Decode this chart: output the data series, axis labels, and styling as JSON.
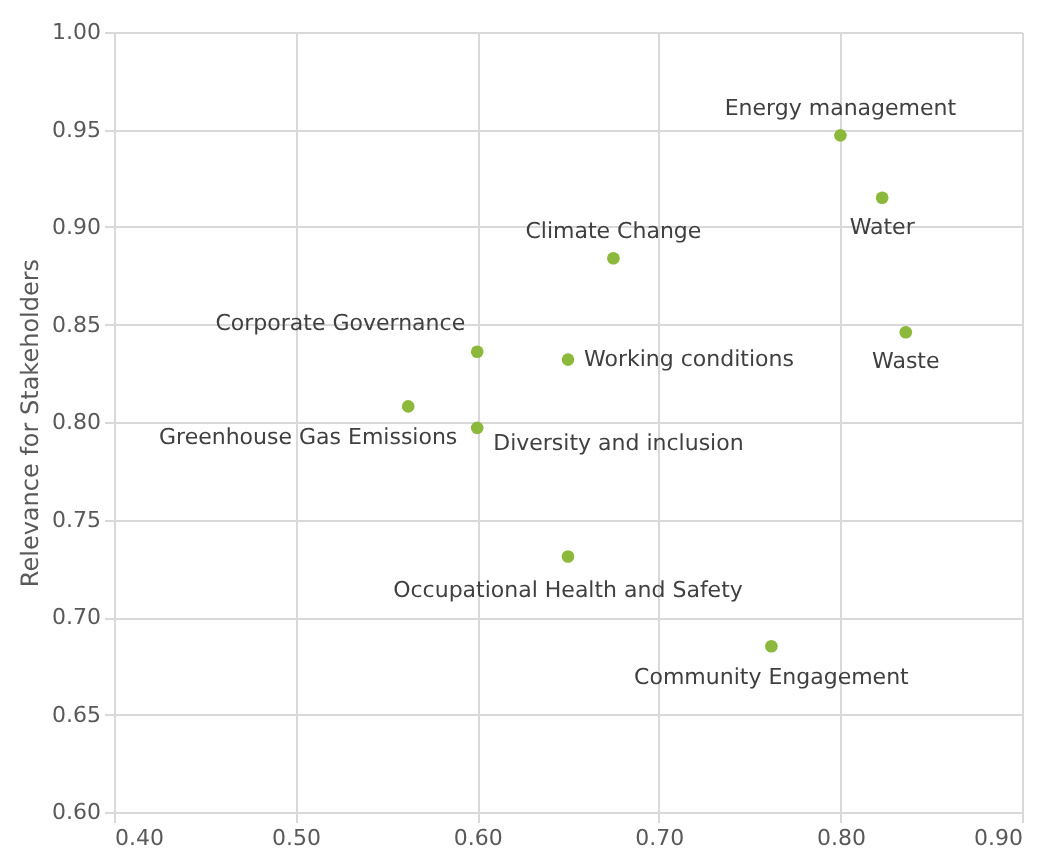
{
  "chart_data": {
    "type": "scatter",
    "ylabel": "Relevance for Stakeholders",
    "x": [
      0.8,
      0.823,
      0.675,
      0.836,
      0.6,
      0.65,
      0.562,
      0.6,
      0.65,
      0.762
    ],
    "values": [
      0.947,
      0.915,
      0.884,
      0.846,
      0.836,
      0.832,
      0.808,
      0.797,
      0.731,
      0.685
    ],
    "color": "#8cb83c",
    "marker": "circle",
    "grid": true,
    "xlim": [
      0.4,
      0.9
    ],
    "xticks": [
      {
        "value": 0.4,
        "label": "0.40"
      },
      {
        "value": 0.5,
        "label": "0.50"
      },
      {
        "value": 0.6,
        "label": "0.60"
      },
      {
        "value": 0.7,
        "label": "0.70"
      },
      {
        "value": 0.8,
        "label": "0.80"
      },
      {
        "value": 0.9,
        "label": "0.90"
      }
    ],
    "ylim": [
      0.6,
      1.0
    ],
    "yticks": [
      {
        "value": 0.6,
        "label": "0.60"
      },
      {
        "value": 0.65,
        "label": "0.65"
      },
      {
        "value": 0.7,
        "label": "0.70"
      },
      {
        "value": 0.75,
        "label": "0.75"
      },
      {
        "value": 0.8,
        "label": "0.80"
      },
      {
        "value": 0.85,
        "label": "0.85"
      },
      {
        "value": 0.9,
        "label": "0.90"
      },
      {
        "value": 0.95,
        "label": "0.95"
      },
      {
        "value": 1.0,
        "label": "1.00"
      }
    ],
    "annotations": [
      {
        "text": "Energy management",
        "x": 0.8,
        "y": 0.947
      },
      {
        "text": "Water",
        "x": 0.823,
        "y": 0.915
      },
      {
        "text": "Climate Change",
        "x": 0.675,
        "y": 0.884
      },
      {
        "text": "Waste",
        "x": 0.836,
        "y": 0.846
      },
      {
        "text": "Corporate Governance",
        "x": 0.6,
        "y": 0.836
      },
      {
        "text": "Working conditions",
        "x": 0.65,
        "y": 0.832
      },
      {
        "text": "Greenhouse Gas Emissions",
        "x": 0.562,
        "y": 0.808
      },
      {
        "text": "Diversity and inclusion",
        "x": 0.6,
        "y": 0.797
      },
      {
        "text": "Occupational Health and Safety",
        "x": 0.65,
        "y": 0.731
      },
      {
        "text": "Community Engagement",
        "x": 0.762,
        "y": 0.685
      }
    ]
  }
}
